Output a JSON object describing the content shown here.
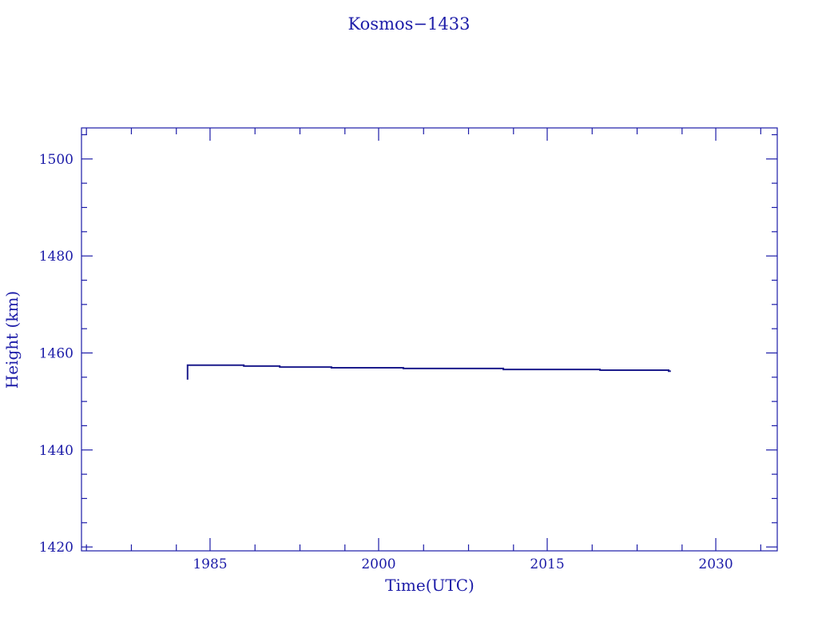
{
  "chart_data": {
    "type": "line",
    "title": "Kosmos−1433",
    "xlabel": "Time(UTC)",
    "ylabel": "Height (km)",
    "xlim": [
      1973.56,
      2035.47
    ],
    "ylim": [
      1419.2,
      1506.4
    ],
    "x_ticks": [
      1985,
      2000,
      2015,
      2030
    ],
    "x_tick_labels": [
      "1985",
      "2000",
      "2015",
      "2030"
    ],
    "x_minor_ticks": [
      1974,
      1978,
      1982,
      1989,
      1993,
      1997,
      2004,
      2008,
      2012,
      2019,
      2023,
      2027,
      2034
    ],
    "y_ticks": [
      1420,
      1440,
      1460,
      1480,
      1500
    ],
    "y_tick_labels": [
      "1420",
      "1440",
      "1460",
      "1480",
      "1500"
    ],
    "y_minor_step": 5,
    "grid": false,
    "color": "#1c1c8c",
    "axis_color": "#1c1ca8",
    "series": [
      {
        "x": [
          1983.0,
          1983.0,
          1988.0,
          1988.0,
          1991.2,
          1991.2,
          1995.8,
          1995.8,
          2002.2,
          2002.2,
          2011.1,
          2011.1,
          2019.7,
          2019.7,
          2025.8,
          2025.8,
          2026.0
        ],
        "y": [
          1454.5,
          1457.5,
          1457.5,
          1457.3,
          1457.3,
          1457.1,
          1457.1,
          1456.95,
          1456.95,
          1456.8,
          1456.8,
          1456.6,
          1456.6,
          1456.45,
          1456.45,
          1456.25,
          1456.25
        ]
      }
    ]
  }
}
